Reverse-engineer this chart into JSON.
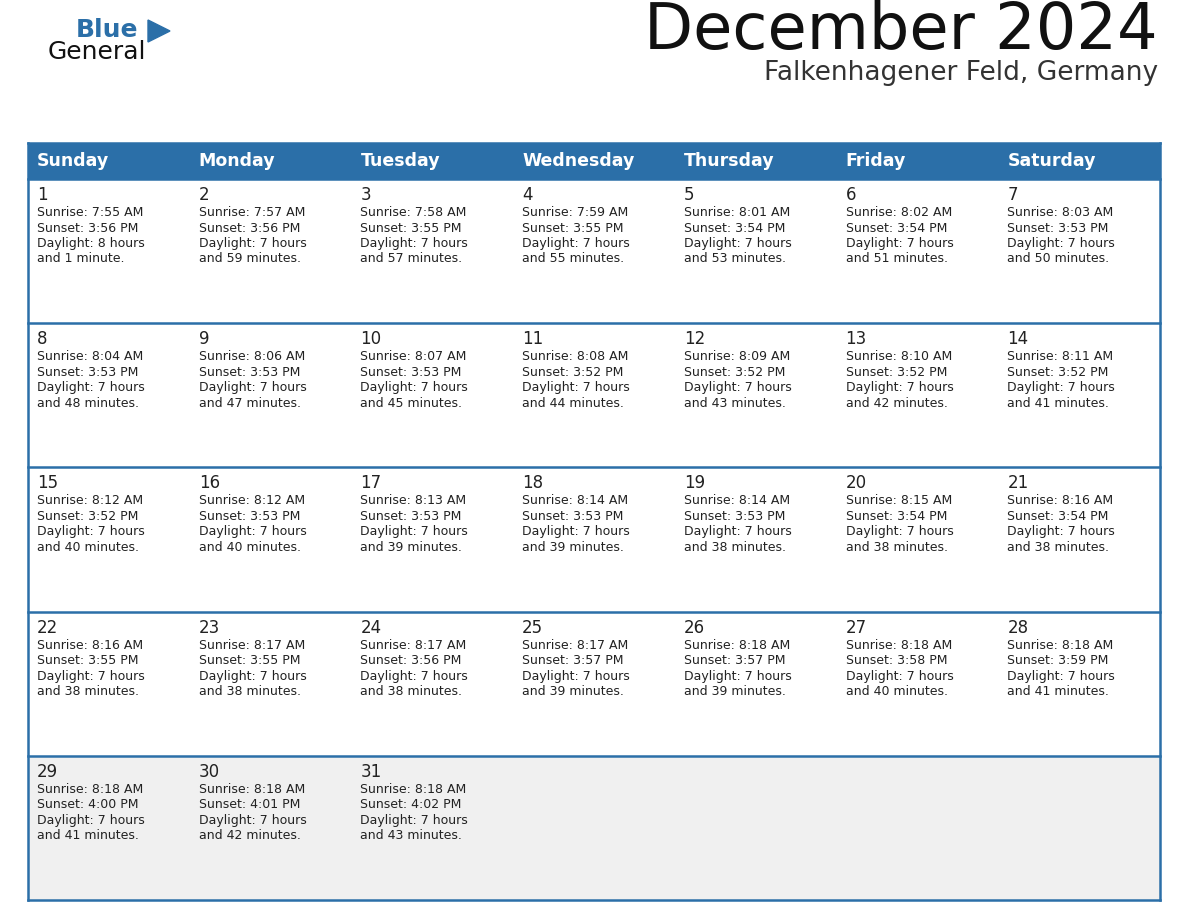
{
  "title": "December 2024",
  "subtitle": "Falkenhagener Feld, Germany",
  "days_of_week": [
    "Sunday",
    "Monday",
    "Tuesday",
    "Wednesday",
    "Thursday",
    "Friday",
    "Saturday"
  ],
  "header_bg": "#2B6FA8",
  "header_text": "#FFFFFF",
  "row_bg_white": "#FFFFFF",
  "row_bg_gray": "#F0F0F0",
  "divider_color": "#2B6FA8",
  "cell_line_color": "#C8C8C8",
  "text_color": "#222222",
  "title_color": "#111111",
  "subtitle_color": "#333333",
  "calendar_data": [
    [
      {
        "day": 1,
        "sunrise": "7:55 AM",
        "sunset": "3:56 PM",
        "daylight": "8 hours",
        "daylight2": "and 1 minute."
      },
      {
        "day": 2,
        "sunrise": "7:57 AM",
        "sunset": "3:56 PM",
        "daylight": "7 hours",
        "daylight2": "and 59 minutes."
      },
      {
        "day": 3,
        "sunrise": "7:58 AM",
        "sunset": "3:55 PM",
        "daylight": "7 hours",
        "daylight2": "and 57 minutes."
      },
      {
        "day": 4,
        "sunrise": "7:59 AM",
        "sunset": "3:55 PM",
        "daylight": "7 hours",
        "daylight2": "and 55 minutes."
      },
      {
        "day": 5,
        "sunrise": "8:01 AM",
        "sunset": "3:54 PM",
        "daylight": "7 hours",
        "daylight2": "and 53 minutes."
      },
      {
        "day": 6,
        "sunrise": "8:02 AM",
        "sunset": "3:54 PM",
        "daylight": "7 hours",
        "daylight2": "and 51 minutes."
      },
      {
        "day": 7,
        "sunrise": "8:03 AM",
        "sunset": "3:53 PM",
        "daylight": "7 hours",
        "daylight2": "and 50 minutes."
      }
    ],
    [
      {
        "day": 8,
        "sunrise": "8:04 AM",
        "sunset": "3:53 PM",
        "daylight": "7 hours",
        "daylight2": "and 48 minutes."
      },
      {
        "day": 9,
        "sunrise": "8:06 AM",
        "sunset": "3:53 PM",
        "daylight": "7 hours",
        "daylight2": "and 47 minutes."
      },
      {
        "day": 10,
        "sunrise": "8:07 AM",
        "sunset": "3:53 PM",
        "daylight": "7 hours",
        "daylight2": "and 45 minutes."
      },
      {
        "day": 11,
        "sunrise": "8:08 AM",
        "sunset": "3:52 PM",
        "daylight": "7 hours",
        "daylight2": "and 44 minutes."
      },
      {
        "day": 12,
        "sunrise": "8:09 AM",
        "sunset": "3:52 PM",
        "daylight": "7 hours",
        "daylight2": "and 43 minutes."
      },
      {
        "day": 13,
        "sunrise": "8:10 AM",
        "sunset": "3:52 PM",
        "daylight": "7 hours",
        "daylight2": "and 42 minutes."
      },
      {
        "day": 14,
        "sunrise": "8:11 AM",
        "sunset": "3:52 PM",
        "daylight": "7 hours",
        "daylight2": "and 41 minutes."
      }
    ],
    [
      {
        "day": 15,
        "sunrise": "8:12 AM",
        "sunset": "3:52 PM",
        "daylight": "7 hours",
        "daylight2": "and 40 minutes."
      },
      {
        "day": 16,
        "sunrise": "8:12 AM",
        "sunset": "3:53 PM",
        "daylight": "7 hours",
        "daylight2": "and 40 minutes."
      },
      {
        "day": 17,
        "sunrise": "8:13 AM",
        "sunset": "3:53 PM",
        "daylight": "7 hours",
        "daylight2": "and 39 minutes."
      },
      {
        "day": 18,
        "sunrise": "8:14 AM",
        "sunset": "3:53 PM",
        "daylight": "7 hours",
        "daylight2": "and 39 minutes."
      },
      {
        "day": 19,
        "sunrise": "8:14 AM",
        "sunset": "3:53 PM",
        "daylight": "7 hours",
        "daylight2": "and 38 minutes."
      },
      {
        "day": 20,
        "sunrise": "8:15 AM",
        "sunset": "3:54 PM",
        "daylight": "7 hours",
        "daylight2": "and 38 minutes."
      },
      {
        "day": 21,
        "sunrise": "8:16 AM",
        "sunset": "3:54 PM",
        "daylight": "7 hours",
        "daylight2": "and 38 minutes."
      }
    ],
    [
      {
        "day": 22,
        "sunrise": "8:16 AM",
        "sunset": "3:55 PM",
        "daylight": "7 hours",
        "daylight2": "and 38 minutes."
      },
      {
        "day": 23,
        "sunrise": "8:17 AM",
        "sunset": "3:55 PM",
        "daylight": "7 hours",
        "daylight2": "and 38 minutes."
      },
      {
        "day": 24,
        "sunrise": "8:17 AM",
        "sunset": "3:56 PM",
        "daylight": "7 hours",
        "daylight2": "and 38 minutes."
      },
      {
        "day": 25,
        "sunrise": "8:17 AM",
        "sunset": "3:57 PM",
        "daylight": "7 hours",
        "daylight2": "and 39 minutes."
      },
      {
        "day": 26,
        "sunrise": "8:18 AM",
        "sunset": "3:57 PM",
        "daylight": "7 hours",
        "daylight2": "and 39 minutes."
      },
      {
        "day": 27,
        "sunrise": "8:18 AM",
        "sunset": "3:58 PM",
        "daylight": "7 hours",
        "daylight2": "and 40 minutes."
      },
      {
        "day": 28,
        "sunrise": "8:18 AM",
        "sunset": "3:59 PM",
        "daylight": "7 hours",
        "daylight2": "and 41 minutes."
      }
    ],
    [
      {
        "day": 29,
        "sunrise": "8:18 AM",
        "sunset": "4:00 PM",
        "daylight": "7 hours",
        "daylight2": "and 41 minutes."
      },
      {
        "day": 30,
        "sunrise": "8:18 AM",
        "sunset": "4:01 PM",
        "daylight": "7 hours",
        "daylight2": "and 42 minutes."
      },
      {
        "day": 31,
        "sunrise": "8:18 AM",
        "sunset": "4:02 PM",
        "daylight": "7 hours",
        "daylight2": "and 43 minutes."
      },
      null,
      null,
      null,
      null
    ]
  ],
  "logo_text_general": "General",
  "logo_text_blue": "Blue",
  "logo_color_general": "#111111",
  "logo_color_blue": "#2B6FA8"
}
